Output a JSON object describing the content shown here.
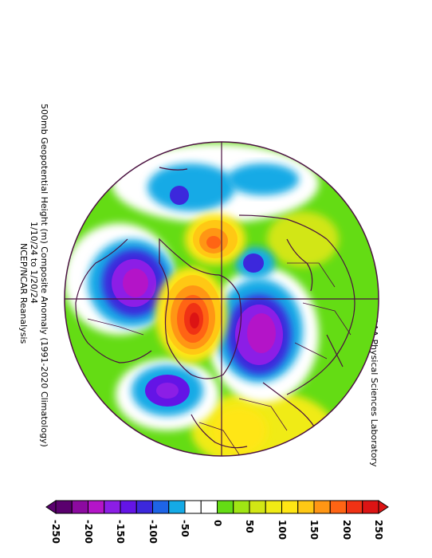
{
  "title": {
    "line1": "500mb Geopotential Height (m) Composite Anomaly (1991-2020 Climatology)",
    "line2": "1/10/24 to 1/20/24",
    "line3": "NCEP/NCAR Reanalysis"
  },
  "credit": "NOAA Physical Sciences Laboratory",
  "colorbar": {
    "ticks": [
      "-250",
      "-200",
      "-150",
      "-100",
      "-50",
      "0",
      "50",
      "100",
      "150",
      "200",
      "250"
    ],
    "colors": [
      "#5a006e",
      "#8c0aa0",
      "#b414c8",
      "#8c1ee6",
      "#6414e6",
      "#3c28dc",
      "#1e64e6",
      "#14aae6",
      "#ffffff",
      "#ffffff",
      "#64dc14",
      "#a0e614",
      "#d2e614",
      "#f0eb14",
      "#ffe614",
      "#ffc814",
      "#ff9614",
      "#ff6414",
      "#f03214",
      "#dc1414"
    ]
  },
  "map": {
    "projection": "north-polar-stereographic",
    "anomaly_centers": [
      {
        "sign": "negative",
        "region": "western North America / Alaska"
      },
      {
        "sign": "negative",
        "region": "Scandinavia / NW Europe"
      },
      {
        "sign": "positive",
        "region": "Greenland / Canadian Arctic"
      },
      {
        "sign": "positive",
        "region": "East Siberian Arctic"
      },
      {
        "sign": "negative",
        "region": "North Pacific (minor)"
      },
      {
        "sign": "negative",
        "region": "North Atlantic south of Greenland (minor)"
      }
    ]
  }
}
